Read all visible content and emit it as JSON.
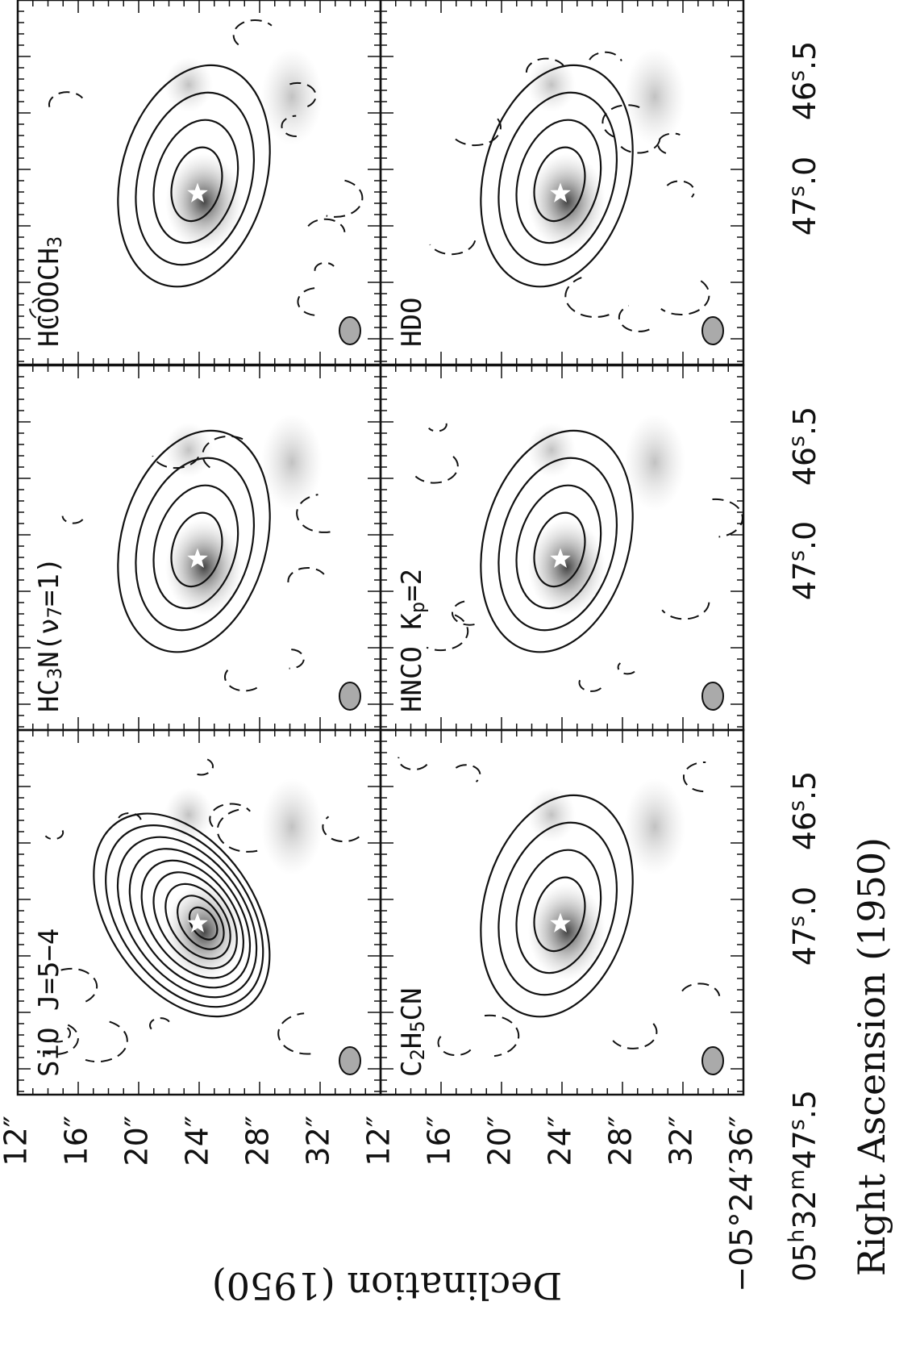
{
  "figure": {
    "panels": [
      {
        "label": [
          {
            "text": "HCOOCH"
          },
          {
            "sub": "3"
          }
        ]
      },
      {
        "label": [
          {
            "text": "HC"
          },
          {
            "sub": "3"
          },
          {
            "text": "N(ν"
          },
          {
            "sub": "7"
          },
          {
            "text": "=1)"
          }
        ]
      },
      {
        "label": [
          {
            "text": "SiO J=5−4"
          }
        ]
      },
      {
        "label": [
          {
            "text": "HDO"
          }
        ]
      },
      {
        "label": [
          {
            "text": "HNCO K"
          },
          {
            "sub": "p"
          },
          {
            "text": "=2"
          }
        ]
      },
      {
        "label": [
          {
            "text": "C"
          },
          {
            "sub": "2"
          },
          {
            "text": "H"
          },
          {
            "sub": "5"
          },
          {
            "text": "CN"
          }
        ]
      }
    ],
    "x_axis": {
      "title": "Right Ascension (1950)",
      "ticks": [
        [
          {
            "text": "46"
          },
          {
            "sup": "s"
          },
          {
            "text": ".5"
          }
        ],
        [
          {
            "text": "47"
          },
          {
            "sup": "s"
          },
          {
            "text": ".0"
          }
        ],
        [
          {
            "text": "46"
          },
          {
            "sup": "s"
          },
          {
            "text": ".5"
          }
        ],
        [
          {
            "text": "47"
          },
          {
            "sup": "s"
          },
          {
            "text": ".0"
          }
        ],
        [
          {
            "text": "46"
          },
          {
            "sup": "s"
          },
          {
            "text": ".5"
          }
        ],
        [
          {
            "text": "47"
          },
          {
            "sup": "s"
          },
          {
            "text": ".0"
          }
        ],
        [
          {
            "text": "05"
          },
          {
            "sup": "h"
          },
          {
            "text": "32"
          },
          {
            "sup": "m"
          },
          {
            "text": "47"
          },
          {
            "sup": "s"
          },
          {
            "text": ".5"
          }
        ]
      ]
    },
    "y_axis": {
      "title": "Declination (1950)",
      "ticks": [
        "12″",
        "16″",
        "20″",
        "24″",
        "28″",
        "32″",
        "12″",
        "16″",
        "20″",
        "24″",
        "28″",
        "32″",
        "−05°24′36″"
      ]
    }
  }
}
